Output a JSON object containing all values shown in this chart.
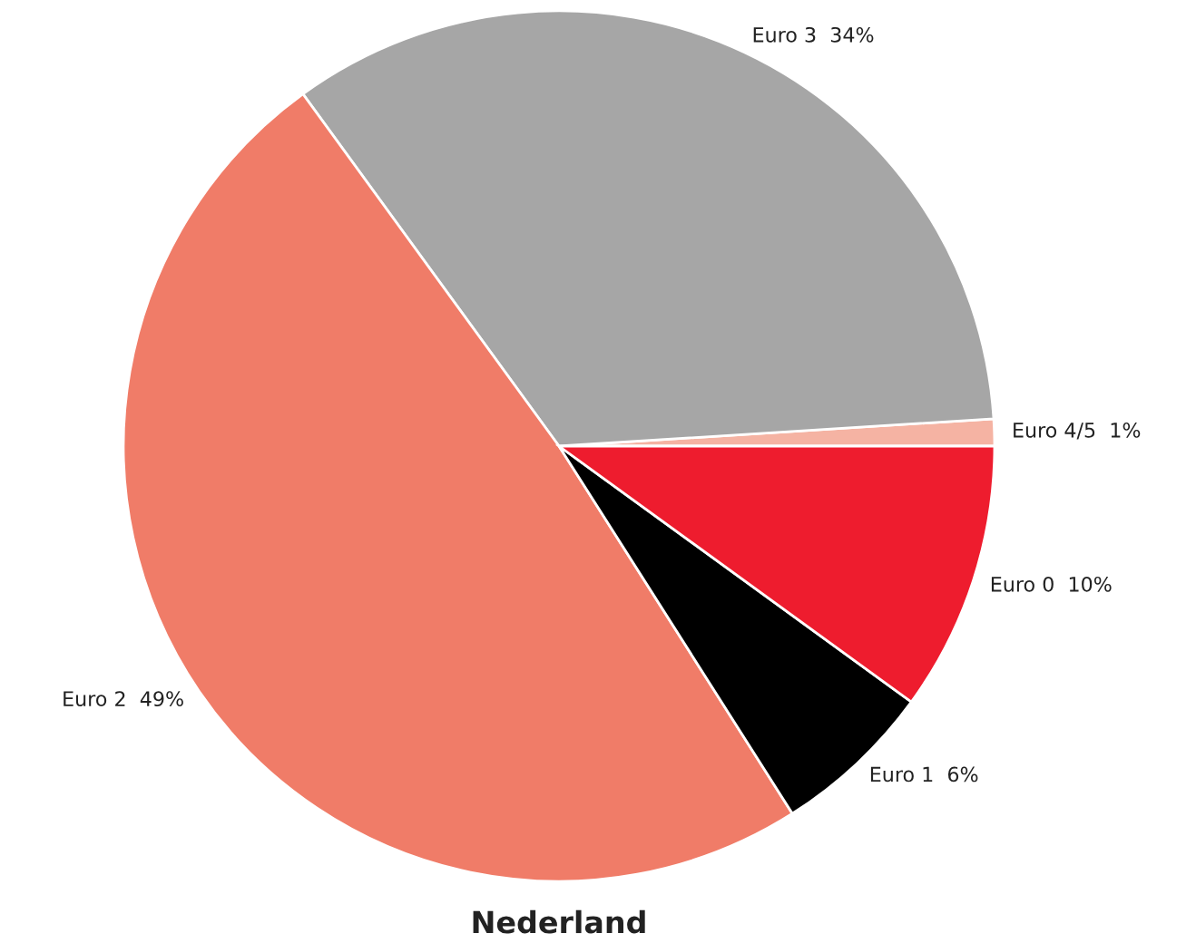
{
  "chart_data": {
    "type": "pie",
    "title": "Nederland",
    "categories": [
      "Euro 4/5",
      "Euro 3",
      "Euro 2",
      "Euro 1",
      "Euro 0"
    ],
    "values": [
      1,
      34,
      49,
      6,
      10
    ],
    "value_labels": [
      "1%",
      "34%",
      "49%",
      "6%",
      "10%"
    ],
    "colors": [
      "#f5b3a3",
      "#a6a6a6",
      "#f07c68",
      "#000000",
      "#ee1c2e"
    ]
  }
}
